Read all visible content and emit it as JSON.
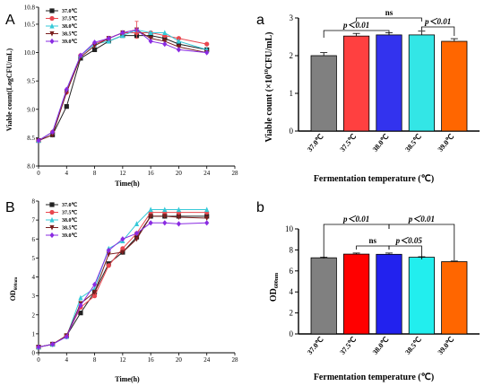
{
  "panels": {
    "A": {
      "label": "A"
    },
    "B": {
      "label": "B"
    },
    "a": {
      "label": "a"
    },
    "b": {
      "label": "b"
    }
  },
  "chart_data": [
    {
      "id": "A",
      "type": "line",
      "xlabel": "Time(h)",
      "ylabel": "Viable count(LogCFU/mL)",
      "xlim": [
        0,
        28
      ],
      "ylim": [
        8.0,
        10.8
      ],
      "xticks": [
        0,
        4,
        8,
        12,
        16,
        20,
        24,
        28
      ],
      "yticks": [
        8.0,
        8.5,
        9.0,
        9.5,
        10.0,
        10.5,
        10.8
      ],
      "x": [
        0,
        2,
        4,
        6,
        8,
        10,
        12,
        14,
        16,
        18,
        20,
        24
      ],
      "legend": "top-left",
      "grid": false,
      "series": [
        {
          "name": "37.0℃",
          "color": "#222222",
          "marker": "square",
          "values": [
            8.45,
            8.55,
            9.05,
            9.9,
            10.05,
            10.2,
            10.3,
            10.3,
            10.3,
            10.25,
            10.15,
            10.05
          ]
        },
        {
          "name": "37.5℃",
          "color": "#e8474f",
          "marker": "circle",
          "values": [
            8.45,
            8.6,
            9.3,
            9.95,
            10.15,
            10.25,
            10.35,
            10.35,
            10.35,
            10.3,
            10.25,
            10.15
          ]
        },
        {
          "name": "38.0℃",
          "color": "#36c9d8",
          "marker": "triangle-up",
          "values": [
            8.45,
            8.6,
            9.35,
            9.95,
            10.15,
            10.2,
            10.3,
            10.4,
            10.35,
            10.35,
            10.2,
            10.05
          ]
        },
        {
          "name": "38.5℃",
          "color": "#7a1f1f",
          "marker": "triangle-down",
          "values": [
            8.45,
            8.55,
            9.3,
            9.92,
            10.12,
            10.25,
            10.35,
            10.4,
            10.25,
            10.2,
            10.1,
            10.0
          ]
        },
        {
          "name": "39.0℃",
          "color": "#8a2be2",
          "marker": "diamond",
          "values": [
            8.45,
            8.6,
            9.35,
            9.95,
            10.18,
            10.25,
            10.35,
            10.4,
            10.2,
            10.15,
            10.05,
            10.0
          ]
        }
      ],
      "error_bars": [
        {
          "x": 14,
          "series": "37.5℃",
          "low": 10.25,
          "high": 10.55
        }
      ]
    },
    {
      "id": "B",
      "type": "line",
      "xlabel": "Time(h)",
      "ylabel": "OD",
      "ylabel_sub": "600nm",
      "xlim": [
        0,
        28
      ],
      "ylim": [
        0,
        8
      ],
      "xticks": [
        0,
        4,
        8,
        12,
        16,
        20,
        24,
        28
      ],
      "yticks": [
        0,
        1,
        2,
        3,
        4,
        5,
        6,
        7,
        8
      ],
      "x": [
        0,
        2,
        4,
        6,
        8,
        10,
        12,
        14,
        16,
        18,
        20,
        24
      ],
      "legend": "top-left",
      "grid": false,
      "series": [
        {
          "name": "37.0℃",
          "color": "#222222",
          "marker": "square",
          "values": [
            0.3,
            0.45,
            0.9,
            2.1,
            3.2,
            4.7,
            5.3,
            6.1,
            7.2,
            7.2,
            7.2,
            7.2
          ]
        },
        {
          "name": "37.5℃",
          "color": "#e8474f",
          "marker": "circle",
          "values": [
            0.3,
            0.45,
            0.9,
            2.4,
            3.0,
            4.6,
            5.5,
            6.3,
            7.4,
            7.4,
            7.4,
            7.4
          ]
        },
        {
          "name": "38.0℃",
          "color": "#36c9d8",
          "marker": "triangle-up",
          "values": [
            0.3,
            0.45,
            0.85,
            2.9,
            3.4,
            5.5,
            5.9,
            6.8,
            7.55,
            7.55,
            7.55,
            7.55
          ]
        },
        {
          "name": "38.5℃",
          "color": "#7a1f1f",
          "marker": "triangle-down",
          "values": [
            0.3,
            0.45,
            0.9,
            2.6,
            3.2,
            5.2,
            5.3,
            6.0,
            7.2,
            7.2,
            7.15,
            7.1
          ]
        },
        {
          "name": "39.0℃",
          "color": "#8a2be2",
          "marker": "diamond",
          "values": [
            0.3,
            0.45,
            0.85,
            2.5,
            3.6,
            5.4,
            6.0,
            6.3,
            6.85,
            6.85,
            6.8,
            6.85
          ]
        }
      ]
    },
    {
      "id": "a",
      "type": "bar",
      "xlabel": "Fermentation temperature (℃)",
      "ylabel": "Viable count (×10",
      "ylabel_sup": "10",
      "ylabel_end": "CFU/mL)",
      "ylim": [
        0,
        3
      ],
      "yticks": [
        0,
        1,
        2,
        3
      ],
      "categories": [
        "37.0℃",
        "37.5℃",
        "38.0℃",
        "38.5℃",
        "39.0℃"
      ],
      "values": [
        2.0,
        2.52,
        2.55,
        2.55,
        2.38
      ],
      "errors": [
        0.08,
        0.07,
        0.06,
        0.1,
        0.07
      ],
      "colors": [
        "#808080",
        "#ff4040",
        "#3333ee",
        "#33e6e6",
        "#ff6600"
      ],
      "annotations": [
        {
          "label": "p＜0.01",
          "from": 0,
          "to": 2
        },
        {
          "label": "ns",
          "from": 1,
          "to": 3
        },
        {
          "label": "p＜0.01",
          "from": 3,
          "to": 4
        }
      ]
    },
    {
      "id": "b",
      "type": "bar",
      "xlabel": "Fermentation temperature (℃)",
      "ylabel": "OD",
      "ylabel_sub": "600nm",
      "ylim": [
        0,
        10
      ],
      "yticks": [
        0,
        2,
        4,
        6,
        8,
        10
      ],
      "categories": [
        "37.0℃",
        "37.5℃",
        "38.0℃",
        "38.5℃",
        "39.0℃"
      ],
      "values": [
        7.25,
        7.6,
        7.58,
        7.3,
        6.88
      ],
      "errors": [
        0.05,
        0.1,
        0.12,
        0.05,
        0.06
      ],
      "colors": [
        "#808080",
        "#ff0000",
        "#2222ee",
        "#22eeee",
        "#ff6600"
      ],
      "annotations": [
        {
          "label": "p＜0.01",
          "from": 0,
          "to": 2
        },
        {
          "label": "ns",
          "from": 1,
          "to": 2
        },
        {
          "label": "p＜0.05",
          "from": 2,
          "to": 3
        },
        {
          "label": "p＜0.01",
          "from": 2,
          "to": 4
        }
      ]
    }
  ]
}
